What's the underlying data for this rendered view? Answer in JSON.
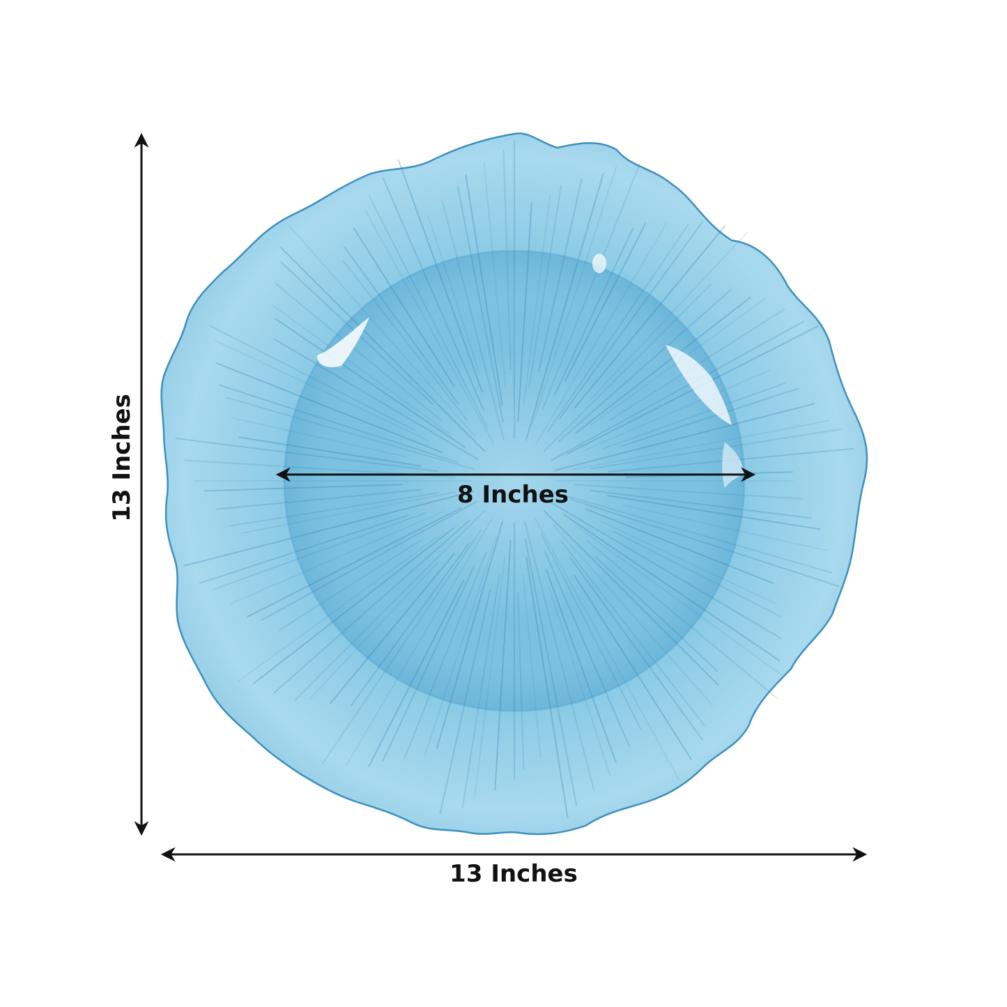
{
  "image": {
    "subject": "ruffled glass charger plate",
    "plate_color": "#7ec3e0",
    "plate_edge_color": "#3d8fbd",
    "arrow_color": "#111111"
  },
  "dimensions": {
    "width_label": "13 Inches",
    "height_label": "13 Inches",
    "inner_label": "8 Inches"
  }
}
